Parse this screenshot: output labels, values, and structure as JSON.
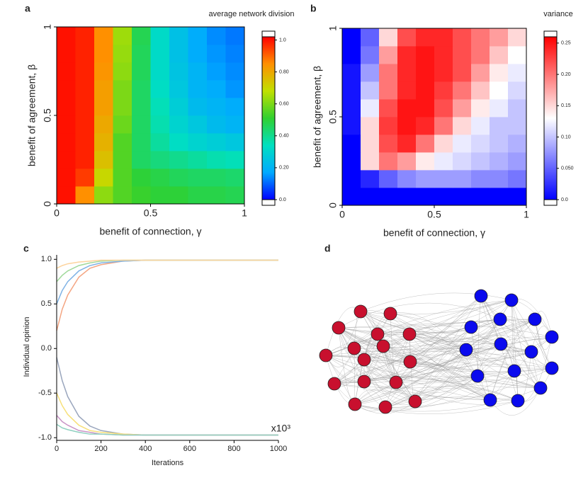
{
  "chart_data": [
    {
      "type": "heatmap",
      "panel": "a",
      "colorbar_title": "average network division",
      "x_label": "benefit of connection, γ",
      "y_label": "benefit of agreement, β",
      "xlim": [
        0,
        1
      ],
      "ylim": [
        0,
        1
      ],
      "xticks": [
        0,
        0.5,
        1
      ],
      "yticks": [
        0,
        0.5,
        1
      ],
      "zlim": [
        0,
        1.02
      ],
      "zticks": [
        {
          "value": 0,
          "label": "0.0"
        },
        {
          "value": 0.2,
          "label": "0.20"
        },
        {
          "value": 0.4,
          "label": "0.40"
        },
        {
          "value": 0.6,
          "label": "0.60"
        },
        {
          "value": 0.8,
          "label": "0.80"
        },
        {
          "value": 1,
          "label": "1.0"
        }
      ],
      "colors": [
        "#0000ff",
        "#00aaff",
        "#00e0c0",
        "#30d030",
        "#c0e000",
        "#ff9000",
        "#ff0000"
      ],
      "z": [
        [
          1.0,
          0.85,
          0.62,
          0.55,
          0.52,
          0.5,
          0.5,
          0.48,
          0.48,
          0.47
        ],
        [
          1.0,
          0.95,
          0.7,
          0.55,
          0.5,
          0.48,
          0.46,
          0.45,
          0.45,
          0.44
        ],
        [
          1.0,
          0.98,
          0.75,
          0.55,
          0.45,
          0.42,
          0.4,
          0.38,
          0.36,
          0.35
        ],
        [
          1.0,
          0.98,
          0.78,
          0.55,
          0.45,
          0.38,
          0.33,
          0.3,
          0.28,
          0.26
        ],
        [
          1.0,
          0.98,
          0.8,
          0.58,
          0.45,
          0.36,
          0.3,
          0.26,
          0.22,
          0.2
        ],
        [
          1.0,
          0.98,
          0.82,
          0.6,
          0.45,
          0.35,
          0.28,
          0.22,
          0.2,
          0.18
        ],
        [
          1.0,
          0.98,
          0.82,
          0.6,
          0.45,
          0.33,
          0.26,
          0.2,
          0.18,
          0.15
        ],
        [
          1.0,
          0.98,
          0.84,
          0.62,
          0.46,
          0.32,
          0.25,
          0.2,
          0.16,
          0.14
        ],
        [
          1.0,
          0.98,
          0.85,
          0.63,
          0.46,
          0.32,
          0.24,
          0.18,
          0.15,
          0.13
        ],
        [
          1.0,
          0.98,
          0.85,
          0.64,
          0.47,
          0.32,
          0.24,
          0.18,
          0.14,
          0.12
        ]
      ]
    },
    {
      "type": "heatmap",
      "panel": "b",
      "colorbar_title": "variance",
      "x_label": "benefit of connection, γ",
      "y_label": "benefit of agreement, β",
      "xlim": [
        0,
        1
      ],
      "ylim": [
        0,
        1
      ],
      "xticks": [
        0,
        0.5,
        1
      ],
      "yticks": [
        0,
        0.5,
        1
      ],
      "zlim": [
        0,
        0.26
      ],
      "zticks": [
        {
          "value": 0,
          "label": "0.0"
        },
        {
          "value": 0.05,
          "label": "0.050"
        },
        {
          "value": 0.1,
          "label": "0.10"
        },
        0.15,
        {
          "value": 0.2,
          "label": "0.20"
        },
        0.25
      ],
      "colors": [
        "#0000ff",
        "#ffffff",
        "#ff0000"
      ],
      "z": [
        [
          0,
          0,
          0,
          0,
          0,
          0,
          0,
          0,
          0,
          0
        ],
        [
          0,
          0.02,
          0.05,
          0.07,
          0.08,
          0.08,
          0.08,
          0.07,
          0.07,
          0.06
        ],
        [
          0,
          0.15,
          0.2,
          0.18,
          0.14,
          0.12,
          0.11,
          0.1,
          0.09,
          0.08
        ],
        [
          0,
          0.15,
          0.22,
          0.24,
          0.2,
          0.15,
          0.12,
          0.11,
          0.1,
          0.09
        ],
        [
          0.01,
          0.15,
          0.23,
          0.25,
          0.24,
          0.2,
          0.15,
          0.12,
          0.1,
          0.1
        ],
        [
          0.01,
          0.12,
          0.22,
          0.25,
          0.25,
          0.22,
          0.18,
          0.14,
          0.12,
          0.1
        ],
        [
          0.01,
          0.1,
          0.2,
          0.24,
          0.25,
          0.23,
          0.2,
          0.16,
          0.13,
          0.11
        ],
        [
          0.01,
          0.08,
          0.2,
          0.24,
          0.25,
          0.24,
          0.22,
          0.18,
          0.14,
          0.12
        ],
        [
          0,
          0.06,
          0.18,
          0.24,
          0.25,
          0.24,
          0.22,
          0.2,
          0.16,
          0.13
        ],
        [
          0,
          0.05,
          0.15,
          0.22,
          0.24,
          0.24,
          0.22,
          0.2,
          0.18,
          0.15
        ]
      ]
    },
    {
      "type": "line",
      "panel": "c",
      "x_label": "Iterations",
      "y_label": "Individual opinion",
      "x_annotation": "x10³",
      "xlim": [
        0,
        1000
      ],
      "ylim": [
        -1.03,
        1.05
      ],
      "xticks": [
        0,
        200,
        400,
        600,
        800,
        1000
      ],
      "yticks": [
        {
          "value": 1,
          "label": "1.0"
        },
        0.5,
        {
          "value": 0,
          "label": "0.0"
        },
        -0.5,
        {
          "value": -1,
          "label": "-1.0"
        }
      ],
      "x": [
        0,
        25,
        50,
        100,
        150,
        200,
        300,
        400,
        600,
        800,
        1000
      ],
      "series": [
        {
          "color": "#f4a582",
          "values": [
            0.2,
            0.44,
            0.6,
            0.8,
            0.9,
            0.94,
            0.98,
            0.99,
            0.99,
            0.99,
            0.99
          ]
        },
        {
          "color": "#7fb2e5",
          "values": [
            0.5,
            0.65,
            0.75,
            0.87,
            0.93,
            0.96,
            0.98,
            0.99,
            0.99,
            0.99,
            0.99
          ]
        },
        {
          "color": "#a1d99b",
          "values": [
            0.75,
            0.82,
            0.87,
            0.93,
            0.96,
            0.98,
            0.99,
            0.99,
            0.99,
            0.99,
            0.99
          ]
        },
        {
          "color": "#fdd49e",
          "values": [
            0.9,
            0.93,
            0.95,
            0.97,
            0.98,
            0.99,
            0.99,
            0.99,
            0.99,
            0.99,
            0.99
          ]
        },
        {
          "color": "#9aa6bd",
          "values": [
            -0.1,
            -0.36,
            -0.54,
            -0.76,
            -0.87,
            -0.92,
            -0.96,
            -0.97,
            -0.97,
            -0.97,
            -0.97
          ]
        },
        {
          "color": "#f7e07a",
          "values": [
            -0.5,
            -0.64,
            -0.74,
            -0.86,
            -0.92,
            -0.94,
            -0.96,
            -0.97,
            -0.97,
            -0.97,
            -0.97
          ]
        },
        {
          "color": "#c994c7",
          "values": [
            -0.75,
            -0.82,
            -0.86,
            -0.92,
            -0.94,
            -0.96,
            -0.97,
            -0.97,
            -0.97,
            -0.97,
            -0.97
          ]
        },
        {
          "color": "#8fd0c0",
          "values": [
            -0.85,
            -0.89,
            -0.91,
            -0.94,
            -0.96,
            -0.96,
            -0.97,
            -0.97,
            -0.97,
            -0.97,
            -0.97
          ]
        }
      ]
    },
    {
      "type": "network",
      "panel": "d",
      "group_colors": [
        "#c8102e",
        "#0a0aee"
      ]
    }
  ]
}
